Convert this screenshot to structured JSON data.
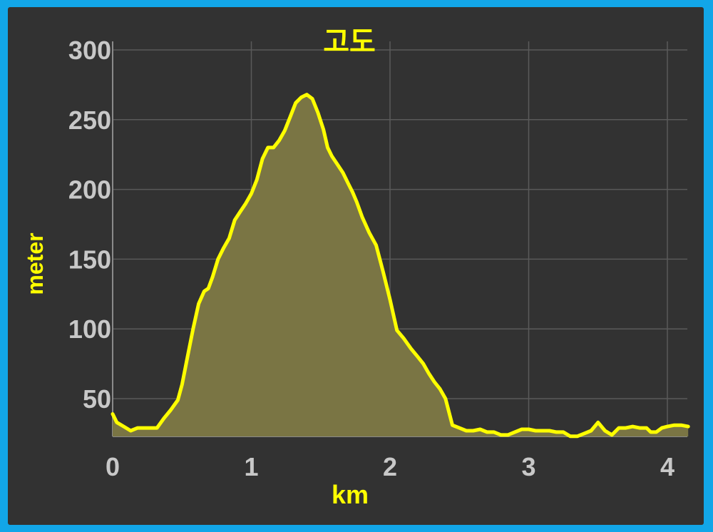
{
  "colors": {
    "frame": "#12a6e8",
    "panel": "#323232",
    "grid": "#5a5a5a",
    "line": "#ffff00",
    "fill": "#7a7544",
    "tick_text": "#c8c8c8",
    "title_text": "#ffff00"
  },
  "chart_data": {
    "type": "area",
    "title": "고도",
    "xlabel": "km",
    "ylabel": "meter",
    "xlim": [
      0,
      4.15
    ],
    "ylim": [
      20,
      300
    ],
    "x_ticks": [
      "0",
      "1",
      "2",
      "3",
      "4"
    ],
    "y_ticks": [
      "50",
      "100",
      "150",
      "200",
      "250",
      "300"
    ],
    "grid": true,
    "legend": "none",
    "series": [
      {
        "x": [
          0,
          0.03,
          0.08,
          0.13,
          0.18,
          0.22,
          0.27,
          0.32,
          0.37,
          0.42,
          0.47,
          0.5,
          0.54,
          0.58,
          0.62,
          0.66,
          0.69,
          0.72,
          0.76,
          0.8,
          0.84,
          0.88,
          0.92,
          0.96,
          1.0,
          1.04,
          1.08,
          1.12,
          1.16,
          1.2,
          1.24,
          1.28,
          1.32,
          1.36,
          1.4,
          1.44,
          1.48,
          1.52,
          1.55,
          1.58,
          1.62,
          1.66,
          1.7,
          1.73,
          1.76,
          1.8,
          1.85,
          1.9,
          1.95,
          2.0,
          2.05,
          2.1,
          2.15,
          2.2,
          2.24,
          2.28,
          2.32,
          2.36,
          2.4,
          2.45,
          2.5,
          2.55,
          2.6,
          2.65,
          2.7,
          2.75,
          2.8,
          2.85,
          2.9,
          2.95,
          3.0,
          3.05,
          3.1,
          3.15,
          3.2,
          3.25,
          3.3,
          3.35,
          3.4,
          3.45,
          3.5,
          3.55,
          3.6,
          3.65,
          3.7,
          3.75,
          3.8,
          3.85,
          3.88,
          3.92,
          3.96,
          4.0,
          4.05,
          4.1,
          4.15
        ],
        "values": [
          39,
          33,
          30,
          27,
          29,
          29,
          29,
          29,
          36,
          42,
          49,
          60,
          80,
          100,
          118,
          127,
          129,
          137,
          150,
          158,
          165,
          178,
          184,
          190,
          197,
          207,
          222,
          230,
          230,
          235,
          242,
          252,
          262,
          266,
          268,
          265,
          255,
          243,
          230,
          224,
          218,
          212,
          204,
          198,
          191,
          180,
          169,
          160,
          141,
          121,
          99,
          93,
          86,
          80,
          75,
          68,
          62,
          57,
          50,
          31,
          29,
          27,
          27,
          28,
          26,
          26,
          24,
          24,
          26,
          28,
          28,
          27,
          27,
          27,
          26,
          26,
          23,
          23,
          25,
          27,
          33,
          27,
          24,
          29,
          29,
          30,
          29,
          29,
          26,
          26,
          29,
          30,
          31,
          31,
          30
        ]
      }
    ]
  }
}
